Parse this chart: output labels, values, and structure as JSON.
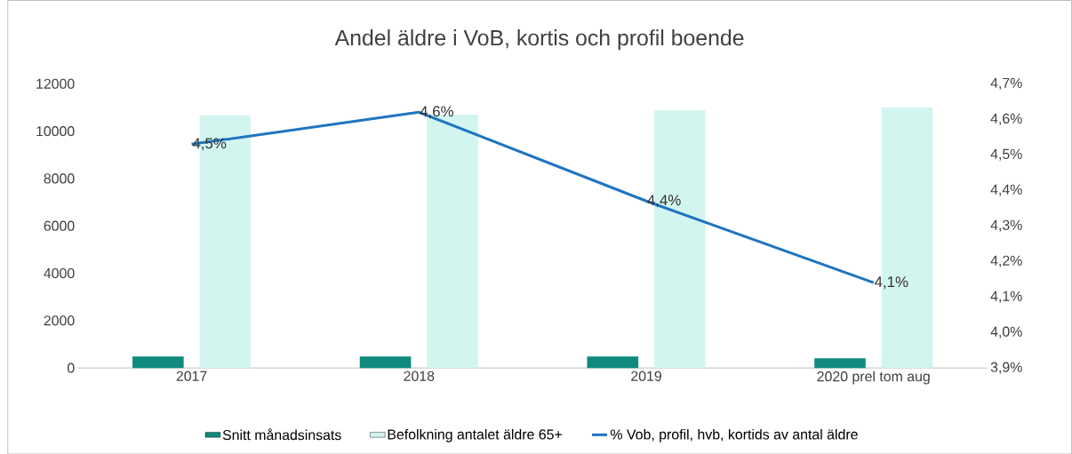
{
  "chart_data": {
    "type": "bar",
    "title": "Andel äldre i VoB, kortis och profil boende",
    "categories": [
      "2017",
      "2018",
      "2019",
      "2020 prel tom aug"
    ],
    "series": [
      {
        "name": "Snitt månadsinsats",
        "color": "#0f8a7e",
        "values": [
          480,
          480,
          480,
          410
        ]
      },
      {
        "name": "Befolkning antalet äldre 65+",
        "color": "#d2f5f0",
        "values": [
          10660,
          10700,
          10880,
          11000
        ]
      },
      {
        "name": "% Vob, profil, hvb, kortids av antal äldre",
        "type": "line",
        "axis": "y2",
        "color": "#1f74c0",
        "values": [
          4.53,
          4.62,
          4.37,
          4.14
        ],
        "value_labels": [
          "4,5%",
          "4,6%",
          "4,4%",
          "4,1%"
        ]
      }
    ],
    "ylim": [
      0,
      12000
    ],
    "yticks": [
      0,
      2000,
      4000,
      6000,
      8000,
      10000,
      12000
    ],
    "y2lim": [
      3.9,
      4.7
    ],
    "y2ticks": [
      {
        "value": 3.9,
        "label": "3,9%"
      },
      {
        "value": 4.0,
        "label": "4,0%"
      },
      {
        "value": 4.1,
        "label": "4,1%"
      },
      {
        "value": 4.2,
        "label": "4,2%"
      },
      {
        "value": 4.3,
        "label": "4,3%"
      },
      {
        "value": 4.4,
        "label": "4,4%"
      },
      {
        "value": 4.5,
        "label": "4,5%"
      },
      {
        "value": 4.6,
        "label": "4,6%"
      },
      {
        "value": 4.7,
        "label": "4,7%"
      }
    ],
    "legend": "bottom"
  }
}
